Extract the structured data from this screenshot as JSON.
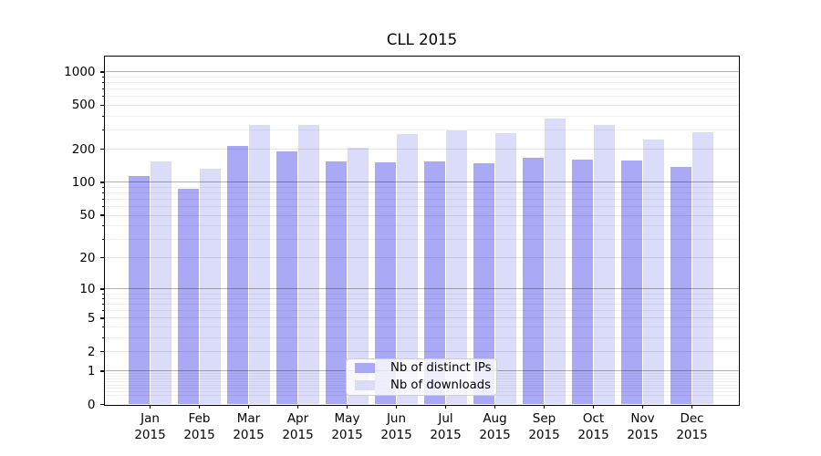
{
  "title": "CLL 2015",
  "legend": {
    "position": "lower center",
    "items": [
      "Nb of distinct IPs",
      "Nb of downloads"
    ]
  },
  "chart_data": {
    "type": "bar",
    "title": "CLL 2015",
    "categories": [
      "Jan",
      "Feb",
      "Mar",
      "Apr",
      "May",
      "Jun",
      "Jul",
      "Aug",
      "Sep",
      "Oct",
      "Nov",
      "Dec"
    ],
    "year_label": "2015",
    "series": [
      {
        "name": "Nb of distinct IPs",
        "color": "#a9a9f5",
        "values": [
          115,
          87,
          214,
          192,
          155,
          151,
          155,
          149,
          168,
          162,
          158,
          139
        ]
      },
      {
        "name": "Nb of downloads",
        "color": "#dbdbfa",
        "values": [
          156,
          132,
          335,
          330,
          208,
          276,
          296,
          281,
          380,
          335,
          244,
          286
        ]
      }
    ],
    "y_scale": "log(1+v)",
    "y_ticks": [
      1000,
      500,
      200,
      100,
      50,
      20,
      10,
      5,
      2,
      1,
      0
    ],
    "ylim": [
      0,
      1400
    ],
    "xlabel": "",
    "ylabel": "",
    "grid": true,
    "gridlines_over_bars": true,
    "legend_position": "lower center",
    "colors": {
      "background": "#ffffff",
      "spine": "#000000"
    }
  }
}
